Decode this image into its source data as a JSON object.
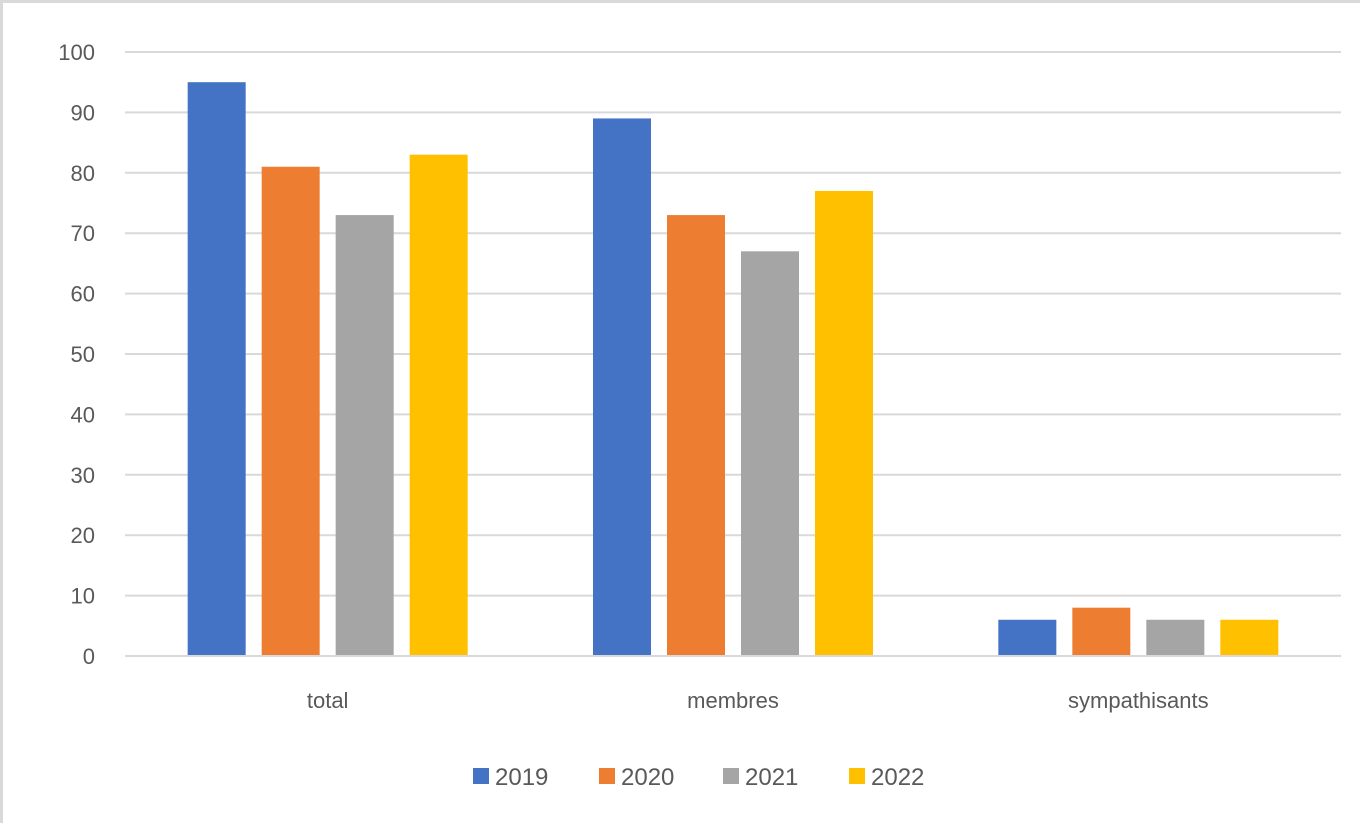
{
  "chart_data": {
    "type": "bar",
    "categories": [
      "total",
      "membres",
      "sympathisants"
    ],
    "series": [
      {
        "name": "2019",
        "color": "#4472C4",
        "values": [
          95,
          89,
          6
        ]
      },
      {
        "name": "2020",
        "color": "#ED7D31",
        "values": [
          81,
          73,
          8
        ]
      },
      {
        "name": "2021",
        "color": "#A5A5A5",
        "values": [
          73,
          67,
          6
        ]
      },
      {
        "name": "2022",
        "color": "#FFC000",
        "values": [
          83,
          77,
          6
        ]
      }
    ],
    "ylim": [
      0,
      100
    ],
    "yticks": [
      0,
      10,
      20,
      30,
      40,
      50,
      60,
      70,
      80,
      90,
      100
    ],
    "title": "",
    "xlabel": "",
    "ylabel": "",
    "grid": true,
    "legend_position": "bottom"
  }
}
